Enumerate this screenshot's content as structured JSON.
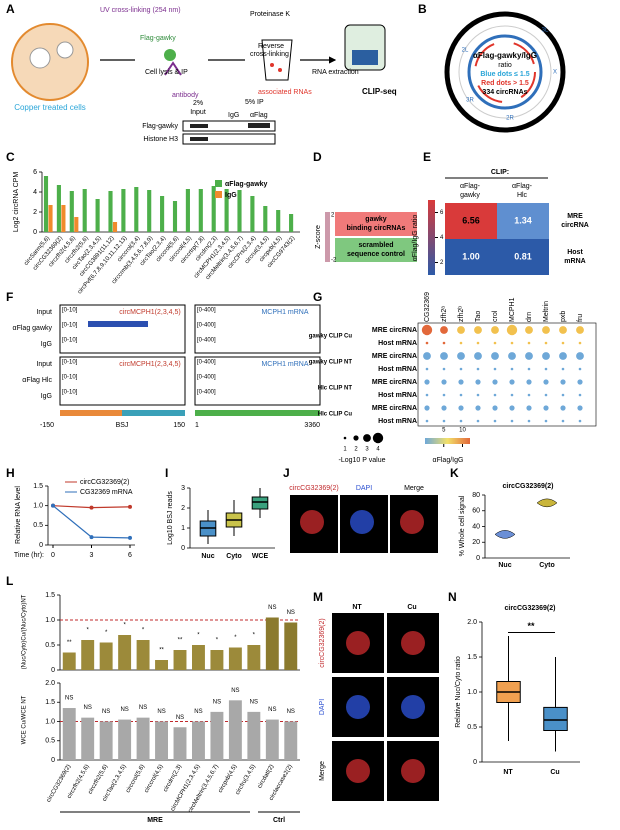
{
  "panels": {
    "A": {
      "letter": "A",
      "uv": "UV cross-linking (254 nm)",
      "flag": "Flag-gawky",
      "lysis": "Cell lysis & IP",
      "antibody": "antibody",
      "protk": "Proteinase K",
      "reverse1": "Reverse",
      "reverse2": "cross-linking",
      "assoc": "associated RNAs",
      "extract": "RNA extraction",
      "clipseq": "CLIP-seq",
      "cells": "Copper treated cells",
      "input1": "2%",
      "input2": "Input",
      "ip": "5% IP",
      "igg": "IgG",
      "aflag": "αFlag",
      "blot1": "Flag-gawky",
      "blot2": "Histone H3"
    },
    "B": {
      "letter": "B",
      "line1": "αFlag-gawky/IgG",
      "line2": "ratio",
      "line3": "Blue dots ≤ 1.5",
      "line4": "Red dots > 1.5",
      "line5": "334 circRNAs",
      "chroms": [
        "2L",
        "2R",
        "3L",
        "3R",
        "X"
      ]
    },
    "C": {
      "letter": "C",
      "ylabel": "Log2 circRNA CPM",
      "ylim": [
        0,
        6
      ],
      "yticks": [
        0,
        2,
        4,
        6
      ],
      "categories": [
        "circSarm(5,6)",
        "circCG32369(2)",
        "circzfh2(4,5,6)",
        "circzfh2(5,6)",
        "circTao(2,3,4,5)",
        "circCG3891(11,12)",
        "circPvf(6,7,8,9,10,11,12,13)",
        "circcrol(3,4)",
        "circcrmb(3,4,5,6,7,8,9)",
        "circTao(2,3,4)",
        "circcrol(5,6)",
        "circcrol(4,5)",
        "circcrtrp(7,8)",
        "circdrn(2,3)",
        "circMCPH1(2,3,4,5)",
        "circMeltrin(3,4,5,6,7)",
        "circCPrs(2,3,4)",
        "circrut(3,4,5)",
        "circpxb(4,5)",
        "circCG9743(2)"
      ],
      "series": [
        {
          "name": "αFlag-gawky",
          "color": "#4daf4a",
          "values": [
            5.6,
            4.7,
            4.1,
            4.3,
            3.3,
            4.1,
            4.3,
            4.5,
            4.2,
            3.6,
            3.1,
            4.3,
            4.3,
            4.6,
            4.3,
            4.2,
            3.6,
            2.6,
            2.2,
            1.8
          ]
        },
        {
          "name": "IgG",
          "color": "#f08a2c",
          "values": [
            2.7,
            2.7,
            1.5,
            null,
            null,
            1,
            null,
            null,
            null,
            null,
            null,
            null,
            null,
            null,
            null,
            null,
            null,
            null,
            null,
            null
          ]
        }
      ]
    },
    "D": {
      "letter": "D",
      "zscore": "Z-score",
      "top": "2",
      "bottom": "-2",
      "row1a": "gawky",
      "row1b": "binding circRNAs",
      "row2a": "scrambled",
      "row2b": "sequence control"
    },
    "E": {
      "letter": "E",
      "clip": "CLIP:",
      "col1a": "αFlag-",
      "col1b": "gawky",
      "col2a": "αFlag-",
      "col2b": "Hlc",
      "row1a": "MRE",
      "row1b": "circRNA",
      "row2a": "Host",
      "row2b": "mRNA",
      "cbar": "αFlag/IgG ratio",
      "cticks": [
        6,
        4,
        2
      ],
      "values": [
        [
          6.56,
          1.34
        ],
        [
          1,
          0.81
        ]
      ],
      "value_labels": [
        [
          "6.56",
          "1.34"
        ],
        [
          "1.00",
          "0.81"
        ]
      ]
    },
    "F": {
      "letter": "F",
      "rows": [
        "Input",
        "αFlag gawky",
        "IgG",
        "Input",
        "αFlag Hlc",
        "IgG"
      ],
      "circ": "circMCPH1(2,3,4,5)",
      "mrna": "MCPH1 mRNA",
      "range1": "[0-10]",
      "range2": "[0-400]",
      "bsj": "BSJ",
      "x1": "-150",
      "x2": "150",
      "x3": "1",
      "x4": "3360"
    },
    "G": {
      "letter": "G",
      "cols": [
        "CG32369",
        "zfh2ᵃ",
        "zfh2ᵇ",
        "Tao",
        "crol",
        "MCPH1",
        "drn",
        "Meltrin",
        "pxb",
        "fru"
      ],
      "groups": [
        "gawky CLIP Cu",
        "gawky CLIP NT",
        "Hlc CLIP NT",
        "Hlc CLIP Cu"
      ],
      "rowlabels": [
        "MRE circRNA",
        "Host mRNA"
      ],
      "pvalues": [
        [
          4,
          3,
          3,
          3,
          3,
          4,
          3,
          3,
          3,
          3
        ],
        [
          1,
          1,
          1,
          1,
          1,
          1,
          1,
          1,
          1,
          1
        ],
        [
          3,
          3,
          3,
          3,
          3,
          3,
          3,
          3,
          3,
          3
        ],
        [
          1,
          1,
          1,
          1,
          1,
          1,
          1,
          1,
          1,
          1
        ],
        [
          2,
          2,
          2,
          2,
          2,
          2,
          2,
          2,
          2,
          2
        ],
        [
          1,
          1,
          1,
          1,
          1,
          1,
          1,
          1,
          1,
          1
        ],
        [
          2,
          2,
          2,
          2,
          2,
          2,
          2,
          2,
          2,
          2
        ],
        [
          1,
          1,
          1,
          1,
          1,
          1,
          1,
          1,
          1,
          1
        ]
      ],
      "sizelabel": "-Log10 P value",
      "sizes": [
        1,
        2,
        3,
        4
      ],
      "colorlabel": "αFlag/IgG",
      "colorticks": [
        5,
        10
      ]
    },
    "H": {
      "letter": "H",
      "ylabel": "Relative RNA level",
      "xlabel": "Time (hr):",
      "ylim": [
        0,
        1.5
      ],
      "yticks": [
        0,
        0.5,
        {
          "value": 1,
          "label": "1.0"
        },
        1.5
      ],
      "xlim": [
        0,
        6
      ],
      "xticks": [
        0,
        3,
        6
      ],
      "x": [
        0,
        3,
        6
      ],
      "series": [
        {
          "name": "circCG32369(2)",
          "color": "#c0392b",
          "values": [
            1,
            0.95,
            0.97
          ]
        },
        {
          "name": "CG32369 mRNA",
          "color": "#2f6fba",
          "values": [
            1,
            0.2,
            0.18
          ]
        }
      ]
    },
    "I": {
      "letter": "I",
      "ylabel": "Log10 BSJ reads",
      "ylim": [
        0,
        3
      ],
      "yticks": [
        0,
        1,
        2,
        3
      ],
      "categories": [
        "Nuc",
        "Cyto",
        "WCE"
      ],
      "colors": [
        "#4a90c8",
        "#c9c34a",
        "#3aa17e"
      ],
      "boxes": [
        [
          0.2,
          0.6,
          1,
          1.35,
          1.9
        ],
        [
          0.6,
          1.05,
          1.4,
          1.75,
          2.4
        ],
        [
          1.5,
          1.95,
          2.3,
          2.55,
          3
        ]
      ]
    },
    "J": {
      "letter": "J",
      "c1": "circCG32369(2)",
      "c2": "DAPI",
      "c3": "Merge"
    },
    "K": {
      "letter": "K",
      "title": "circCG32369(2)",
      "ylabel": "% Whole cell signal",
      "ylim": [
        0,
        80
      ],
      "yticks": [
        0,
        20,
        40,
        60,
        80
      ],
      "categories": [
        "Nuc",
        "Cyto"
      ],
      "colors": [
        "#6b8fd6",
        "#c9b53a"
      ],
      "values": [
        30,
        70
      ]
    },
    "L": {
      "letter": "L",
      "ylabel_top": "(Nuc/Cyto)Cu/(Nuc/Cyto)NT",
      "ylabel_bottom": "WCE Cu/WCE NT",
      "ylim_top": [
        0,
        1.5
      ],
      "yticks_top": [
        0,
        0.5,
        {
          "value": 1,
          "label": "1.0"
        },
        1.5
      ],
      "ylim_bottom": [
        0,
        2
      ],
      "yticks_bottom": [
        0,
        0.5,
        {
          "value": 1,
          "label": "1.0"
        },
        1.5,
        {
          "value": 2,
          "label": "2.0"
        }
      ],
      "categories": [
        "circCG32369(2)",
        "circzfh2(4,5,6)",
        "circzfh2(5,6)",
        "circTao(2,3,4,5)",
        "circcrol(5,6)",
        "circcrol(4,5)",
        "circdrn(2,3)",
        "circMCPH1(2,3,4,5)",
        "circMeltrin(3,4,5,6,7)",
        "circpxb(4,5)",
        "circfru(3,4,5)",
        "circdatl(2)",
        "circlaccase2(2)"
      ],
      "top": [
        0.35,
        0.6,
        0.55,
        0.7,
        0.6,
        0.2,
        0.4,
        0.5,
        0.4,
        0.45,
        0.5,
        1.05,
        0.95
      ],
      "top_sig": [
        "**",
        "*",
        "*",
        "*",
        "*",
        "**",
        "**",
        "*",
        "*",
        "*",
        "*",
        "NS",
        "NS"
      ],
      "bottom": [
        1.35,
        1.1,
        1.0,
        1.05,
        1.1,
        1.0,
        0.85,
        1.0,
        1.25,
        1.55,
        1.25,
        1.05,
        1.0
      ],
      "bottom_sig": [
        "NS",
        "NS",
        "NS",
        "NS",
        "NS",
        "NS",
        "NS",
        "NS",
        "NS",
        "NS",
        "NS",
        "NS",
        "NS"
      ],
      "group1": "MRE",
      "group2": "Ctrl"
    },
    "M": {
      "letter": "M",
      "c1": "NT",
      "c2": "Cu",
      "r1": "circCG32369(2)",
      "r2": "DAPI",
      "r3": "Merge"
    },
    "N": {
      "letter": "N",
      "title": "circCG32369(2)",
      "ylabel": "Relative Nuc/Cyto ratio",
      "ylim": [
        0,
        2
      ],
      "yticks": [
        0,
        0.5,
        {
          "value": 1,
          "label": "1.0"
        },
        1.5,
        {
          "value": 2,
          "label": "2.0"
        }
      ],
      "categories": [
        "NT",
        "Cu"
      ],
      "colors": [
        "#f0a050",
        "#4a90c8"
      ],
      "boxes": [
        [
          0.3,
          0.85,
          1,
          1.15,
          1.8
        ],
        [
          0.15,
          0.45,
          0.6,
          0.78,
          1.5
        ]
      ],
      "sig": "**"
    }
  }
}
